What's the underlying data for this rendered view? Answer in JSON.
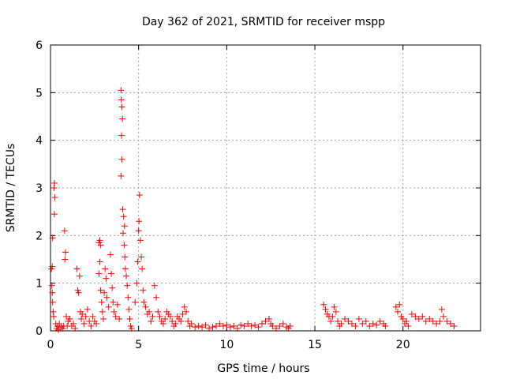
{
  "chart_data": {
    "type": "scatter",
    "title": "Day 362 of 2021, SRMTID for receiver mspp",
    "xlabel": "GPS time / hours",
    "ylabel": "SRMTID / TECUs",
    "xlim": [
      0,
      24.4
    ],
    "ylim": [
      0,
      6
    ],
    "xticks": [
      0,
      5,
      10,
      15,
      20
    ],
    "yticks": [
      0,
      1,
      2,
      3,
      4,
      5,
      6
    ],
    "grid": true,
    "marker": "+",
    "color": "#ff0000",
    "series": [
      {
        "name": "SRMTID",
        "points": [
          [
            0.05,
            1.3
          ],
          [
            0.08,
            0.95
          ],
          [
            0.1,
            0.8
          ],
          [
            0.12,
            0.6
          ],
          [
            0.15,
            0.4
          ],
          [
            0.18,
            0.3
          ],
          [
            0.2,
            3.0
          ],
          [
            0.22,
            3.1
          ],
          [
            0.25,
            2.8
          ],
          [
            0.22,
            2.45
          ],
          [
            0.12,
            1.95
          ],
          [
            0.1,
            1.35
          ],
          [
            0.3,
            0.15
          ],
          [
            0.35,
            0.05
          ],
          [
            0.4,
            0.1
          ],
          [
            0.45,
            0.02
          ],
          [
            0.5,
            0.15
          ],
          [
            0.6,
            0.08
          ],
          [
            0.7,
            0.05
          ],
          [
            0.75,
            0.1
          ],
          [
            0.8,
            2.1
          ],
          [
            0.85,
            1.65
          ],
          [
            0.82,
            1.5
          ],
          [
            0.9,
            0.3
          ],
          [
            0.95,
            0.1
          ],
          [
            1.0,
            0.2
          ],
          [
            1.1,
            0.25
          ],
          [
            1.2,
            0.1
          ],
          [
            1.3,
            0.15
          ],
          [
            1.4,
            0.05
          ],
          [
            1.5,
            1.3
          ],
          [
            1.55,
            0.85
          ],
          [
            1.6,
            0.8
          ],
          [
            1.65,
            1.15
          ],
          [
            1.7,
            0.4
          ],
          [
            1.75,
            0.25
          ],
          [
            1.8,
            0.35
          ],
          [
            1.9,
            0.15
          ],
          [
            2.0,
            0.3
          ],
          [
            2.1,
            0.45
          ],
          [
            2.2,
            0.2
          ],
          [
            2.3,
            0.1
          ],
          [
            2.4,
            0.3
          ],
          [
            2.5,
            0.2
          ],
          [
            2.6,
            0.15
          ],
          [
            2.75,
            1.85
          ],
          [
            2.8,
            1.9
          ],
          [
            2.85,
            1.8
          ],
          [
            2.8,
            1.45
          ],
          [
            2.75,
            1.2
          ],
          [
            2.85,
            0.85
          ],
          [
            2.9,
            0.6
          ],
          [
            2.95,
            0.4
          ],
          [
            3.0,
            0.25
          ],
          [
            3.05,
            0.8
          ],
          [
            3.1,
            1.3
          ],
          [
            3.15,
            1.1
          ],
          [
            3.2,
            0.7
          ],
          [
            3.3,
            0.5
          ],
          [
            3.4,
            1.6
          ],
          [
            3.45,
            1.2
          ],
          [
            3.5,
            0.9
          ],
          [
            3.55,
            0.6
          ],
          [
            3.6,
            0.4
          ],
          [
            3.7,
            0.3
          ],
          [
            3.8,
            0.55
          ],
          [
            3.9,
            0.25
          ],
          [
            4.0,
            5.05
          ],
          [
            4.02,
            4.85
          ],
          [
            4.05,
            4.7
          ],
          [
            4.08,
            4.45
          ],
          [
            4.03,
            4.1
          ],
          [
            4.05,
            3.6
          ],
          [
            4.0,
            3.25
          ],
          [
            4.1,
            2.55
          ],
          [
            4.15,
            2.4
          ],
          [
            4.2,
            2.2
          ],
          [
            4.12,
            2.05
          ],
          [
            4.18,
            1.8
          ],
          [
            4.22,
            1.55
          ],
          [
            4.25,
            1.3
          ],
          [
            4.3,
            1.15
          ],
          [
            4.35,
            0.95
          ],
          [
            4.4,
            0.7
          ],
          [
            4.45,
            0.45
          ],
          [
            4.5,
            0.25
          ],
          [
            4.55,
            0.1
          ],
          [
            4.6,
            0.05
          ],
          [
            4.8,
            0.6
          ],
          [
            4.9,
            1.0
          ],
          [
            4.95,
            1.45
          ],
          [
            5.0,
            2.1
          ],
          [
            5.02,
            2.3
          ],
          [
            5.05,
            2.85
          ],
          [
            5.1,
            1.9
          ],
          [
            5.15,
            1.55
          ],
          [
            5.2,
            1.3
          ],
          [
            5.25,
            0.85
          ],
          [
            5.3,
            0.6
          ],
          [
            5.4,
            0.5
          ],
          [
            5.5,
            0.35
          ],
          [
            5.6,
            0.4
          ],
          [
            5.7,
            0.2
          ],
          [
            5.8,
            0.3
          ],
          [
            5.9,
            0.95
          ],
          [
            6.0,
            0.7
          ],
          [
            6.1,
            0.4
          ],
          [
            6.2,
            0.3
          ],
          [
            6.3,
            0.2
          ],
          [
            6.4,
            0.15
          ],
          [
            6.5,
            0.25
          ],
          [
            6.6,
            0.4
          ],
          [
            6.7,
            0.35
          ],
          [
            6.8,
            0.3
          ],
          [
            6.9,
            0.2
          ],
          [
            7.0,
            0.1
          ],
          [
            7.1,
            0.15
          ],
          [
            7.2,
            0.3
          ],
          [
            7.3,
            0.25
          ],
          [
            7.4,
            0.2
          ],
          [
            7.5,
            0.35
          ],
          [
            7.6,
            0.5
          ],
          [
            7.7,
            0.4
          ],
          [
            7.8,
            0.2
          ],
          [
            7.9,
            0.1
          ],
          [
            8.0,
            0.15
          ],
          [
            8.2,
            0.08
          ],
          [
            8.4,
            0.1
          ],
          [
            8.6,
            0.08
          ],
          [
            8.8,
            0.12
          ],
          [
            9.0,
            0.05
          ],
          [
            9.2,
            0.08
          ],
          [
            9.4,
            0.1
          ],
          [
            9.6,
            0.15
          ],
          [
            9.8,
            0.1
          ],
          [
            10.0,
            0.12
          ],
          [
            10.2,
            0.08
          ],
          [
            10.4,
            0.1
          ],
          [
            10.6,
            0.05
          ],
          [
            10.8,
            0.12
          ],
          [
            11.0,
            0.1
          ],
          [
            11.2,
            0.15
          ],
          [
            11.4,
            0.1
          ],
          [
            11.6,
            0.12
          ],
          [
            11.8,
            0.08
          ],
          [
            12.0,
            0.15
          ],
          [
            12.2,
            0.2
          ],
          [
            12.4,
            0.25
          ],
          [
            12.5,
            0.15
          ],
          [
            12.6,
            0.1
          ],
          [
            12.8,
            0.05
          ],
          [
            13.0,
            0.1
          ],
          [
            13.2,
            0.15
          ],
          [
            13.4,
            0.08
          ],
          [
            13.5,
            0.05
          ],
          [
            13.6,
            0.1
          ],
          [
            15.5,
            0.55
          ],
          [
            15.6,
            0.45
          ],
          [
            15.7,
            0.35
          ],
          [
            15.8,
            0.3
          ],
          [
            15.9,
            0.2
          ],
          [
            16.0,
            0.3
          ],
          [
            16.1,
            0.5
          ],
          [
            16.2,
            0.4
          ],
          [
            16.3,
            0.2
          ],
          [
            16.4,
            0.1
          ],
          [
            16.5,
            0.15
          ],
          [
            16.7,
            0.25
          ],
          [
            16.9,
            0.2
          ],
          [
            17.1,
            0.15
          ],
          [
            17.3,
            0.1
          ],
          [
            17.5,
            0.25
          ],
          [
            17.7,
            0.15
          ],
          [
            17.9,
            0.2
          ],
          [
            18.1,
            0.1
          ],
          [
            18.3,
            0.15
          ],
          [
            18.5,
            0.12
          ],
          [
            18.7,
            0.2
          ],
          [
            18.9,
            0.15
          ],
          [
            19.0,
            0.1
          ],
          [
            19.6,
            0.5
          ],
          [
            19.7,
            0.4
          ],
          [
            19.8,
            0.55
          ],
          [
            19.9,
            0.3
          ],
          [
            20.0,
            0.25
          ],
          [
            20.1,
            0.15
          ],
          [
            20.2,
            0.2
          ],
          [
            20.3,
            0.1
          ],
          [
            20.5,
            0.35
          ],
          [
            20.7,
            0.3
          ],
          [
            20.9,
            0.25
          ],
          [
            21.1,
            0.3
          ],
          [
            21.3,
            0.2
          ],
          [
            21.5,
            0.25
          ],
          [
            21.7,
            0.2
          ],
          [
            21.9,
            0.15
          ],
          [
            22.1,
            0.2
          ],
          [
            22.2,
            0.45
          ],
          [
            22.3,
            0.3
          ],
          [
            22.5,
            0.2
          ],
          [
            22.7,
            0.15
          ],
          [
            22.9,
            0.1
          ]
        ]
      }
    ]
  }
}
